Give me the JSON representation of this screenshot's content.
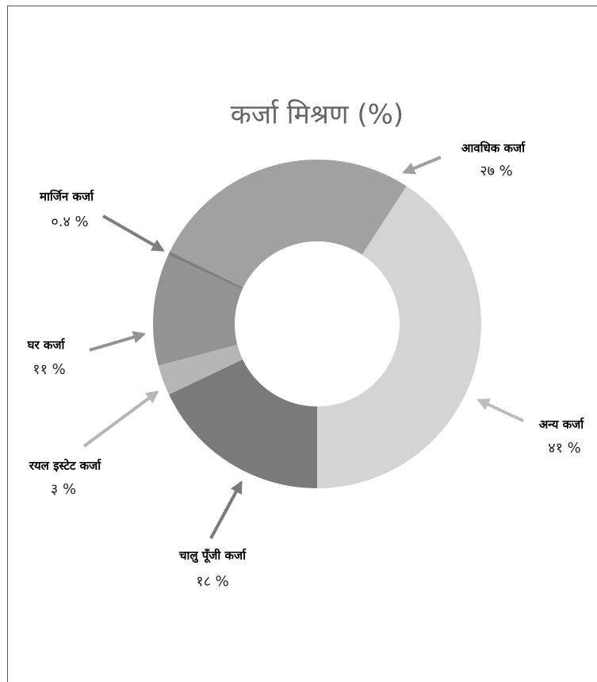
{
  "chart_data": {
    "type": "donut",
    "title": "कर्जा मिश्रण (%)",
    "categories": [
      "अन्य कर्जा",
      "आवधिक कर्जा",
      "मार्जिन कर्जा",
      "घर कर्जा",
      "रयल इस्टेट कर्जा",
      "चालु पूँजी कर्जा"
    ],
    "values": [
      41,
      27,
      0.4,
      11,
      3,
      18
    ],
    "value_labels": [
      "४१ %",
      "२७ %",
      "०.४ %",
      "११ %",
      "३ %",
      "१८ %"
    ],
    "colors": [
      "#d4d4d4",
      "#a1a1a1",
      "#7f7f7f",
      "#939393",
      "#b6b6b6",
      "#7a7a7a"
    ]
  }
}
